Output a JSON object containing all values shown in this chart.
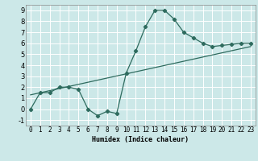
{
  "xlabel": "Humidex (Indice chaleur)",
  "bg_color": "#cce8e8",
  "grid_color": "#ffffff",
  "line_color": "#2e6b5e",
  "xlim": [
    -0.5,
    23.5
  ],
  "ylim": [
    -1.5,
    9.5
  ],
  "xticks": [
    0,
    1,
    2,
    3,
    4,
    5,
    6,
    7,
    8,
    9,
    10,
    11,
    12,
    13,
    14,
    15,
    16,
    17,
    18,
    19,
    20,
    21,
    22,
    23
  ],
  "yticks": [
    -1,
    0,
    1,
    2,
    3,
    4,
    5,
    6,
    7,
    8,
    9
  ],
  "curve_x": [
    0,
    1,
    2,
    3,
    4,
    5,
    6,
    7,
    8,
    9,
    10,
    11,
    12,
    13,
    14,
    15,
    16,
    17,
    18,
    19,
    20,
    21,
    22,
    23
  ],
  "curve_y": [
    0.0,
    1.5,
    1.5,
    2.0,
    2.0,
    1.8,
    0.0,
    -0.6,
    -0.2,
    -0.4,
    3.3,
    5.3,
    7.5,
    9.0,
    9.0,
    8.2,
    7.0,
    6.5,
    6.0,
    5.7,
    5.8,
    5.9,
    6.0,
    6.0
  ],
  "trend_x": [
    0,
    23
  ],
  "trend_y": [
    1.3,
    5.7
  ],
  "xlabel_fontsize": 6,
  "tick_fontsize": 5.5
}
